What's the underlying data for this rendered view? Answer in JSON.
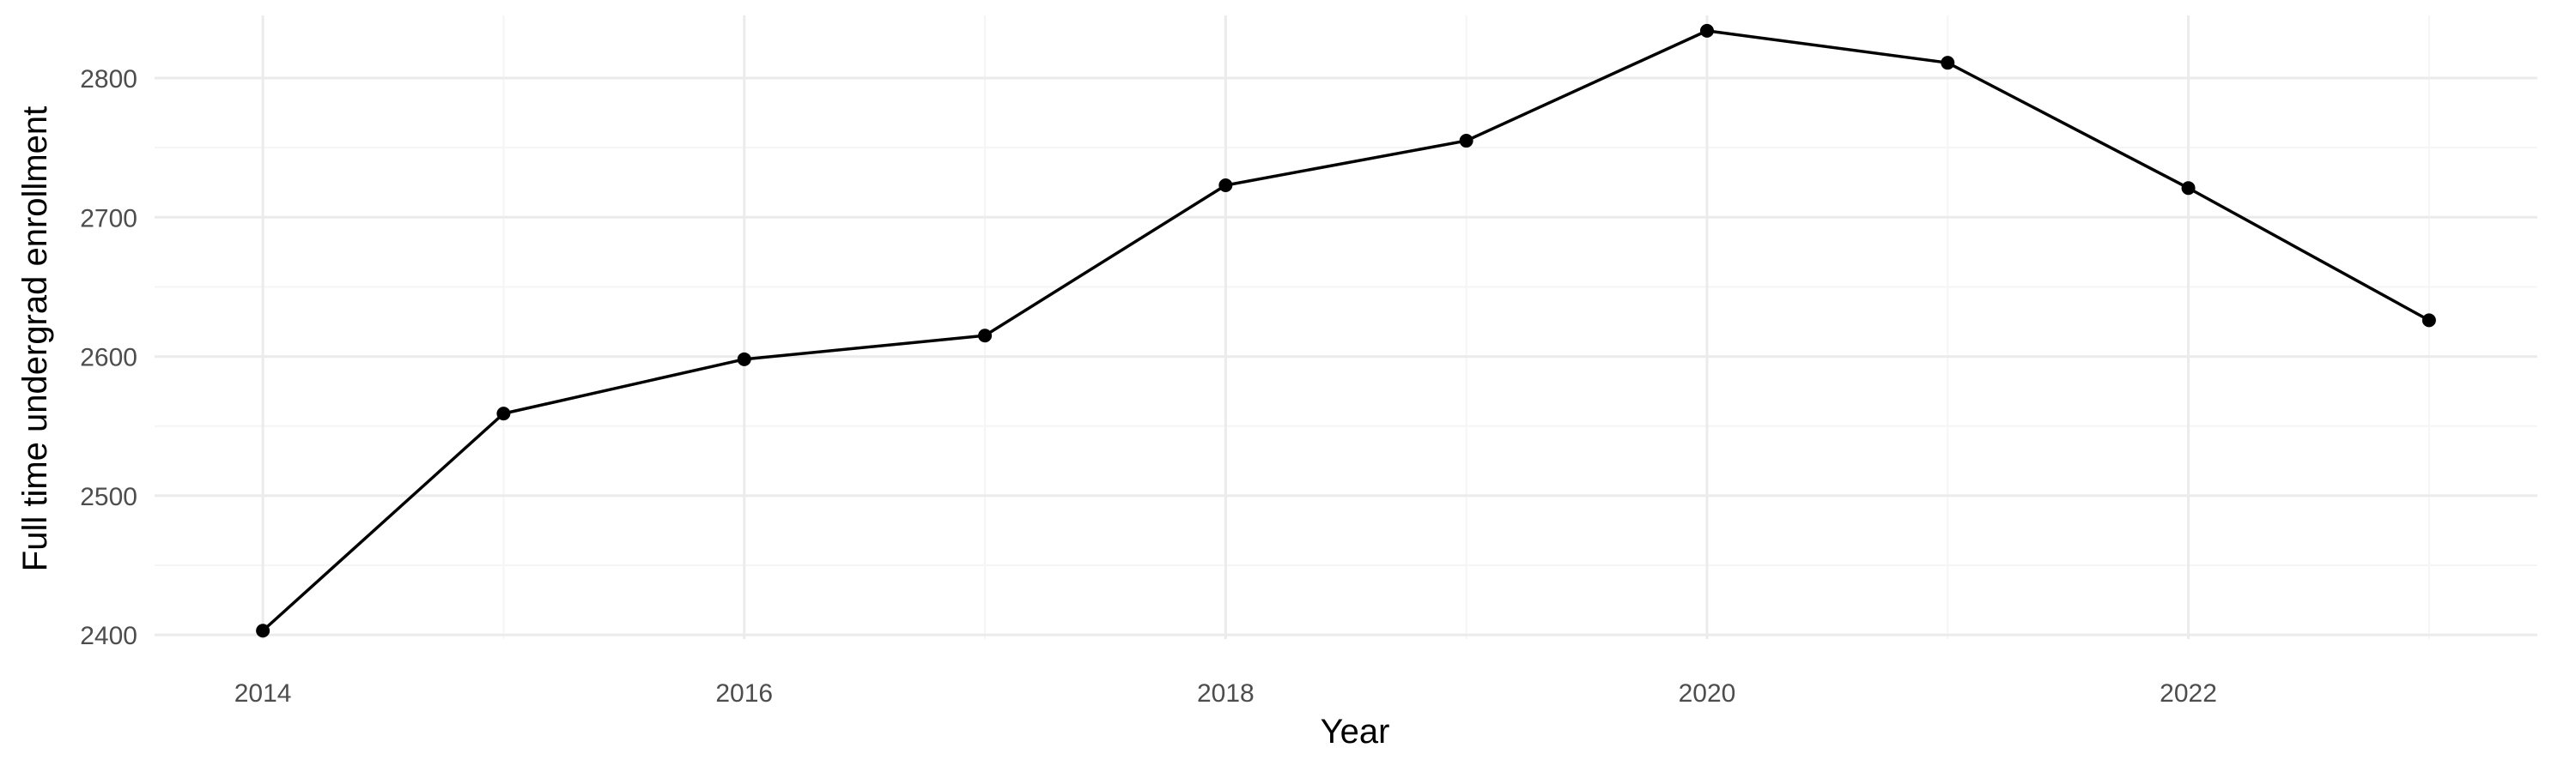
{
  "chart_data": {
    "type": "line",
    "title": "",
    "xlabel": "Year",
    "ylabel": "Full time undergrad enrollment",
    "x": [
      2014,
      2015,
      2016,
      2017,
      2018,
      2019,
      2020,
      2021,
      2022,
      2023
    ],
    "series": [
      {
        "values": [
          2403,
          2559,
          2598,
          2615,
          2723,
          2755,
          2834,
          2811,
          2721,
          2626
        ]
      }
    ],
    "xlim": [
      2013.55,
      2023.45
    ],
    "ylim": [
      2397,
      2845
    ],
    "x_ticks": [
      "2014",
      "2016",
      "2018",
      "2020",
      "2022"
    ],
    "y_ticks": [
      "2400",
      "2500",
      "2600",
      "2700",
      "2800"
    ],
    "x_minor_ticks": [
      2015,
      2017,
      2019,
      2021,
      2023
    ],
    "y_minor_ticks": [
      2450,
      2550,
      2650,
      2750
    ],
    "grid": true,
    "legend": "none",
    "colors": {
      "line": "#000000",
      "point": "#000000",
      "grid_major": "#ebebeb",
      "grid_minor": "#f5f5f5",
      "tick_text": "#4d4d4d",
      "axis_title": "#000000"
    }
  }
}
